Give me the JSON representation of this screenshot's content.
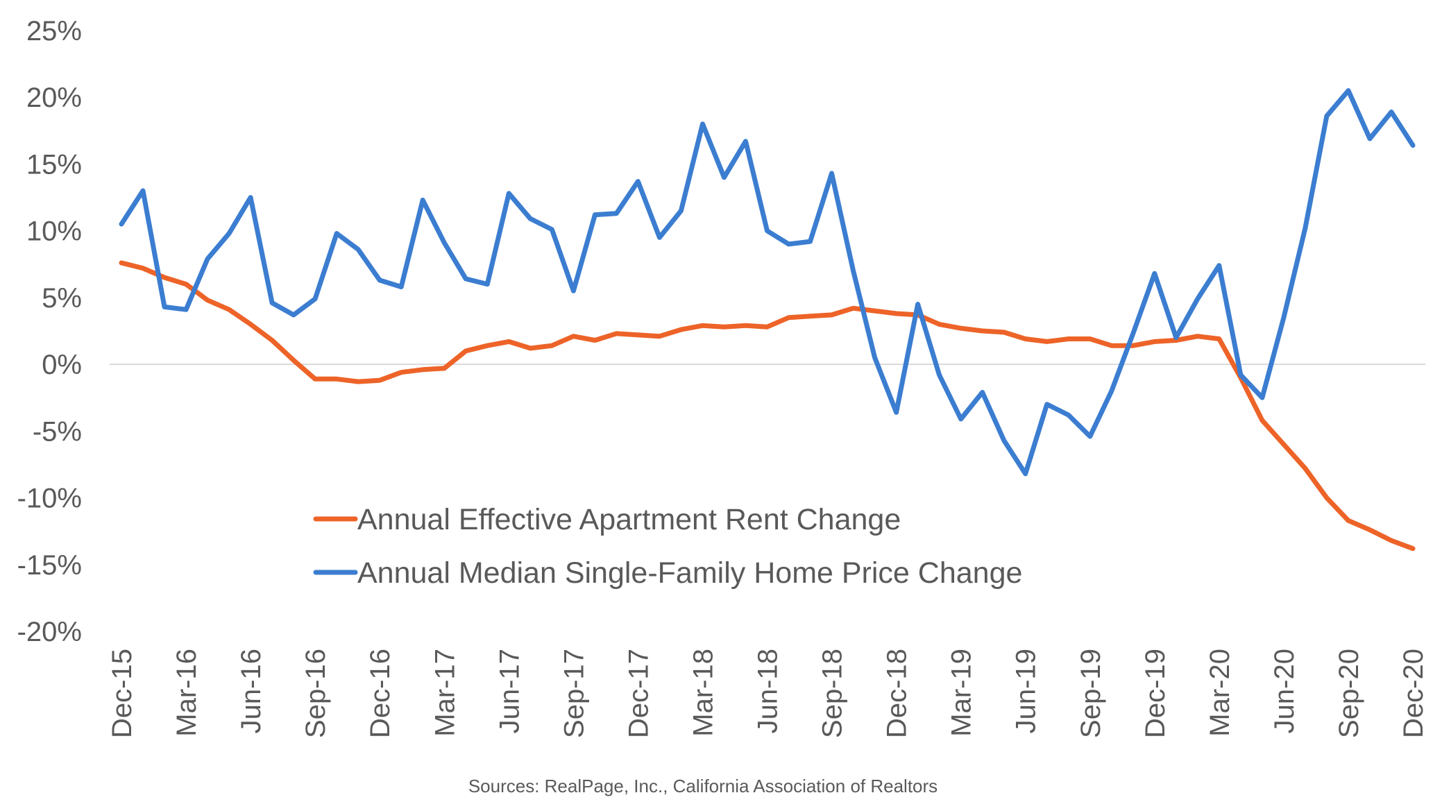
{
  "chart_data": {
    "type": "line",
    "title": "",
    "xlabel": "",
    "ylabel": "",
    "y_unit": "%",
    "ylim": [
      -20,
      25
    ],
    "y_ticks": [
      25,
      20,
      15,
      10,
      5,
      0,
      -5,
      -10,
      -15,
      -20
    ],
    "y_tick_labels": [
      "25%",
      "20%",
      "15%",
      "10%",
      "5%",
      "0%",
      "-5%",
      "-10%",
      "-15%",
      "-20%"
    ],
    "x": [
      "Dec-15",
      "Jan-16",
      "Feb-16",
      "Mar-16",
      "Apr-16",
      "May-16",
      "Jun-16",
      "Jul-16",
      "Aug-16",
      "Sep-16",
      "Oct-16",
      "Nov-16",
      "Dec-16",
      "Jan-17",
      "Feb-17",
      "Mar-17",
      "Apr-17",
      "May-17",
      "Jun-17",
      "Jul-17",
      "Aug-17",
      "Sep-17",
      "Oct-17",
      "Nov-17",
      "Dec-17",
      "Jan-18",
      "Feb-18",
      "Mar-18",
      "Apr-18",
      "May-18",
      "Jun-18",
      "Jul-18",
      "Aug-18",
      "Sep-18",
      "Oct-18",
      "Nov-18",
      "Dec-18",
      "Jan-19",
      "Feb-19",
      "Mar-19",
      "Apr-19",
      "May-19",
      "Jun-19",
      "Jul-19",
      "Aug-19",
      "Sep-19",
      "Oct-19",
      "Nov-19",
      "Dec-19",
      "Jan-20",
      "Feb-20",
      "Mar-20",
      "Apr-20",
      "May-20",
      "Jun-20",
      "Jul-20",
      "Aug-20",
      "Sep-20",
      "Oct-20",
      "Nov-20",
      "Dec-20"
    ],
    "x_tick_labels": [
      "Dec-15",
      "Mar-16",
      "Jun-16",
      "Sep-16",
      "Dec-16",
      "Mar-17",
      "Jun-17",
      "Sep-17",
      "Dec-17",
      "Mar-18",
      "Jun-18",
      "Sep-18",
      "Dec-18",
      "Mar-19",
      "Jun-19",
      "Sep-19",
      "Dec-19",
      "Mar-20",
      "Jun-20",
      "Sep-20",
      "Dec-20"
    ],
    "grid": false,
    "zero_line": true,
    "legend_position": "bottom-center",
    "series": [
      {
        "name": "Annual Effective Apartment Rent Change",
        "color": "#ED6328",
        "values": [
          7.6,
          7.2,
          6.5,
          6.0,
          4.8,
          4.1,
          3.0,
          1.8,
          0.3,
          -1.1,
          -1.1,
          -1.3,
          -1.2,
          -0.6,
          -0.4,
          -0.3,
          1.0,
          1.4,
          1.7,
          1.2,
          1.4,
          2.1,
          1.8,
          2.3,
          2.2,
          2.1,
          2.6,
          2.9,
          2.8,
          2.9,
          2.8,
          3.5,
          3.6,
          3.7,
          4.2,
          4.0,
          3.8,
          3.7,
          3.0,
          2.7,
          2.5,
          2.4,
          1.9,
          1.7,
          1.9,
          1.9,
          1.4,
          1.4,
          1.7,
          1.8,
          2.1,
          1.9,
          -1.0,
          -4.2,
          -6.0,
          -7.8,
          -10.0,
          -11.7,
          -12.4,
          -13.2,
          -13.8
        ]
      },
      {
        "name": "Annual Median Single-Family Home Price Change",
        "color": "#3B7DD0",
        "values": [
          10.5,
          13.0,
          4.3,
          4.1,
          7.9,
          9.8,
          12.5,
          4.6,
          3.7,
          4.9,
          9.8,
          8.6,
          6.3,
          5.8,
          12.3,
          9.1,
          6.4,
          6.0,
          12.8,
          10.9,
          10.1,
          5.5,
          11.2,
          11.3,
          13.7,
          9.5,
          11.5,
          18.0,
          14.0,
          16.7,
          10.0,
          9.0,
          9.2,
          14.3,
          7.0,
          0.5,
          -3.6,
          4.5,
          -0.8,
          -4.1,
          -2.1,
          -5.7,
          -8.2,
          -3.0,
          -3.8,
          -5.4,
          -2.0,
          2.3,
          6.8,
          2.0,
          4.9,
          7.4,
          -0.8,
          -2.5,
          3.5,
          10.2,
          18.6,
          20.5,
          16.9,
          18.9,
          16.4
        ]
      }
    ],
    "source": "Sources: RealPage, Inc., California Association of Realtors"
  }
}
